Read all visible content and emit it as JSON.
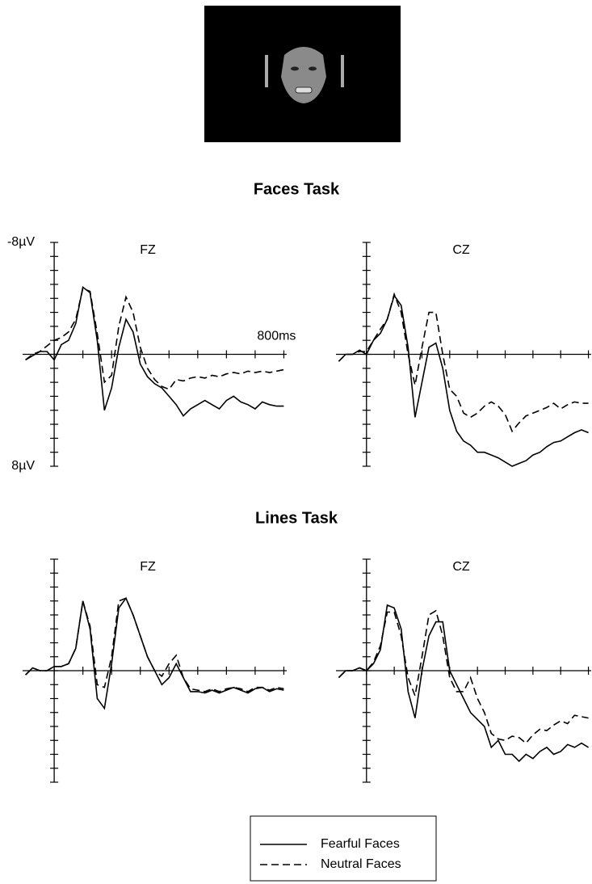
{
  "section_titles": [
    "Faces Task",
    "Lines Task"
  ],
  "chart_data": [
    {
      "type": "line",
      "title": "FZ",
      "x": [
        -100,
        -75,
        -50,
        -25,
        0,
        25,
        50,
        75,
        100,
        125,
        150,
        175,
        200,
        225,
        250,
        275,
        300,
        325,
        350,
        375,
        400,
        425,
        450,
        475,
        500,
        525,
        550,
        575,
        600,
        625,
        650,
        675,
        700,
        725,
        750,
        775,
        800
      ],
      "xlim": [
        -110,
        810
      ],
      "ylim": [
        8,
        -8
      ],
      "xticks": [
        {
          "value": 0,
          "label": null
        },
        {
          "value": 100,
          "label": null
        },
        {
          "value": 200,
          "label": null
        },
        {
          "value": 300,
          "label": null
        },
        {
          "value": 400,
          "label": null
        },
        {
          "value": 500,
          "label": null
        },
        {
          "value": 600,
          "label": null
        },
        {
          "value": 700,
          "label": null
        },
        {
          "value": 800,
          "label": "800ms"
        }
      ],
      "yticks": [
        {
          "value": -8,
          "label": "-8µV"
        },
        {
          "value": -7,
          "label": null
        },
        {
          "value": -6,
          "label": null
        },
        {
          "value": -5,
          "label": null
        },
        {
          "value": -4,
          "label": null
        },
        {
          "value": -3,
          "label": null
        },
        {
          "value": -2,
          "label": null
        },
        {
          "value": -1,
          "label": null
        },
        {
          "value": 0,
          "label": null
        },
        {
          "value": 1,
          "label": null
        },
        {
          "value": 2,
          "label": null
        },
        {
          "value": 3,
          "label": null
        },
        {
          "value": 4,
          "label": null
        },
        {
          "value": 5,
          "label": null
        },
        {
          "value": 6,
          "label": null
        },
        {
          "value": 7,
          "label": null
        },
        {
          "value": 8,
          "label": "8µV"
        }
      ],
      "series": [
        {
          "name": "Fearful Faces",
          "color": "#000000",
          "style": "solid",
          "values": [
            0.4,
            0.1,
            -0.2,
            -0.2,
            0.4,
            -0.7,
            -1,
            -2.2,
            -4.8,
            -4.4,
            -1,
            4,
            2.4,
            -0.5,
            -2.5,
            -1.6,
            0.7,
            1.6,
            2.1,
            2.4,
            3,
            3.6,
            4.4,
            3.9,
            3.6,
            3.3,
            3.6,
            3.9,
            3.3,
            3,
            3.4,
            3.6,
            3.9,
            3.4,
            3.6,
            3.7,
            3.7
          ]
        },
        {
          "name": "Neutral Faces",
          "color": "#000000",
          "style": "dashed",
          "values": [
            0.4,
            0,
            -0.2,
            -0.6,
            -1,
            -1.2,
            -1.6,
            -2.5,
            -4.7,
            -4.5,
            -1.5,
            2,
            1.5,
            -2,
            -4.1,
            -3,
            -0.5,
            1,
            1.8,
            2.3,
            2.5,
            1.8,
            1.9,
            1.7,
            1.6,
            1.7,
            1.5,
            1.6,
            1.4,
            1.3,
            1.4,
            1.2,
            1.3,
            1.2,
            1.3,
            1.2,
            1.1
          ]
        }
      ]
    },
    {
      "type": "line",
      "title": "CZ",
      "x": [
        -100,
        -75,
        -50,
        -25,
        0,
        25,
        50,
        75,
        100,
        125,
        150,
        175,
        200,
        225,
        250,
        275,
        300,
        325,
        350,
        375,
        400,
        425,
        450,
        475,
        500,
        525,
        550,
        575,
        600,
        625,
        650,
        675,
        700,
        725,
        750,
        775,
        800
      ],
      "xlim": [
        -110,
        810
      ],
      "ylim": [
        8,
        -8
      ],
      "xticks": [
        {
          "value": 0,
          "label": null
        },
        {
          "value": 100,
          "label": null
        },
        {
          "value": 200,
          "label": null
        },
        {
          "value": 300,
          "label": null
        },
        {
          "value": 400,
          "label": null
        },
        {
          "value": 500,
          "label": null
        },
        {
          "value": 600,
          "label": null
        },
        {
          "value": 700,
          "label": null
        },
        {
          "value": 800,
          "label": null
        }
      ],
      "yticks": [
        {
          "value": -8,
          "label": null
        },
        {
          "value": -7,
          "label": null
        },
        {
          "value": -6,
          "label": null
        },
        {
          "value": -5,
          "label": null
        },
        {
          "value": -4,
          "label": null
        },
        {
          "value": -3,
          "label": null
        },
        {
          "value": -2,
          "label": null
        },
        {
          "value": -1,
          "label": null
        },
        {
          "value": 0,
          "label": null
        },
        {
          "value": 1,
          "label": null
        },
        {
          "value": 2,
          "label": null
        },
        {
          "value": 3,
          "label": null
        },
        {
          "value": 4,
          "label": null
        },
        {
          "value": 5,
          "label": null
        },
        {
          "value": 6,
          "label": null
        },
        {
          "value": 7,
          "label": null
        },
        {
          "value": 8,
          "label": null
        }
      ],
      "series": [
        {
          "name": "Fearful Faces",
          "color": "#000000",
          "style": "solid",
          "values": [
            0.5,
            0,
            0,
            -0.3,
            0,
            -1,
            -1.5,
            -2.5,
            -4.2,
            -3.5,
            -0.5,
            4.5,
            2,
            -0.5,
            -0.8,
            1,
            4,
            5.5,
            6.2,
            6.5,
            7,
            7,
            7.2,
            7.4,
            7.7,
            8,
            7.8,
            7.6,
            7.2,
            7,
            6.6,
            6.3,
            6.2,
            5.9,
            5.6,
            5.4,
            5.6
          ]
        },
        {
          "name": "Neutral Faces",
          "color": "#000000",
          "style": "dashed",
          "values": [
            0.5,
            0,
            0,
            -0.2,
            -0.2,
            -1,
            -1.8,
            -2.5,
            -4.3,
            -3,
            0,
            2.2,
            -0.5,
            -3,
            -3,
            0,
            2.5,
            3,
            4.2,
            4.5,
            4.2,
            3.7,
            3.4,
            3.7,
            4.3,
            5.5,
            4.9,
            4.4,
            4.2,
            4,
            3.8,
            3.5,
            3.9,
            3.6,
            3.4,
            3.5,
            3.5
          ]
        }
      ]
    },
    {
      "type": "line",
      "title": "FZ",
      "x": [
        -100,
        -75,
        -50,
        -25,
        0,
        25,
        50,
        75,
        100,
        125,
        150,
        175,
        200,
        225,
        250,
        275,
        300,
        325,
        350,
        375,
        400,
        425,
        450,
        475,
        500,
        525,
        550,
        575,
        600,
        625,
        650,
        675,
        700,
        725,
        750,
        775,
        800
      ],
      "xlim": [
        -110,
        810
      ],
      "ylim": [
        8,
        -8
      ],
      "xticks": [
        {
          "value": 0,
          "label": null
        },
        {
          "value": 100,
          "label": null
        },
        {
          "value": 200,
          "label": null
        },
        {
          "value": 300,
          "label": null
        },
        {
          "value": 400,
          "label": null
        },
        {
          "value": 500,
          "label": null
        },
        {
          "value": 600,
          "label": null
        },
        {
          "value": 700,
          "label": null
        },
        {
          "value": 800,
          "label": null
        }
      ],
      "yticks": [
        {
          "value": -8,
          "label": null
        },
        {
          "value": -7,
          "label": null
        },
        {
          "value": -6,
          "label": null
        },
        {
          "value": -5,
          "label": null
        },
        {
          "value": -4,
          "label": null
        },
        {
          "value": -3,
          "label": null
        },
        {
          "value": -2,
          "label": null
        },
        {
          "value": -1,
          "label": null
        },
        {
          "value": 0,
          "label": null
        },
        {
          "value": 1,
          "label": null
        },
        {
          "value": 2,
          "label": null
        },
        {
          "value": 3,
          "label": null
        },
        {
          "value": 4,
          "label": null
        },
        {
          "value": 5,
          "label": null
        },
        {
          "value": 6,
          "label": null
        },
        {
          "value": 7,
          "label": null
        },
        {
          "value": 8,
          "label": null
        }
      ],
      "series": [
        {
          "name": "Fearful Faces",
          "color": "#000000",
          "style": "solid",
          "values": [
            0.3,
            -0.2,
            0,
            0,
            -0.3,
            -0.3,
            -0.5,
            -1.6,
            -5,
            -3,
            2,
            2.7,
            -0.5,
            -4.5,
            -5.2,
            -4,
            -2.5,
            -1,
            0,
            1,
            0.5,
            -0.5,
            0.5,
            1.5,
            1.5,
            1.6,
            1.4,
            1.6,
            1.4,
            1.2,
            1.4,
            1.6,
            1.3,
            1.2,
            1.5,
            1.3,
            1.4
          ]
        },
        {
          "name": "Neutral Faces",
          "color": "#000000",
          "style": "dashed",
          "values": [
            0.3,
            -0.2,
            0,
            0,
            -0.3,
            -0.3,
            -0.5,
            -1.6,
            -5,
            -3.2,
            1,
            1.2,
            -1,
            -5,
            -5.2,
            -4,
            -2.5,
            -1,
            0,
            0.4,
            -0.5,
            -1.1,
            0.5,
            1.3,
            1.4,
            1.5,
            1.3,
            1.5,
            1.3,
            1.2,
            1.3,
            1.5,
            1.2,
            1.2,
            1.4,
            1.2,
            1.3
          ]
        }
      ]
    },
    {
      "type": "line",
      "title": "CZ",
      "x": [
        -100,
        -75,
        -50,
        -25,
        0,
        25,
        50,
        75,
        100,
        125,
        150,
        175,
        200,
        225,
        250,
        275,
        300,
        325,
        350,
        375,
        400,
        425,
        450,
        475,
        500,
        525,
        550,
        575,
        600,
        625,
        650,
        675,
        700,
        725,
        750,
        775,
        800
      ],
      "xlim": [
        -110,
        810
      ],
      "ylim": [
        8,
        -8
      ],
      "xticks": [
        {
          "value": 0,
          "label": null
        },
        {
          "value": 100,
          "label": null
        },
        {
          "value": 200,
          "label": null
        },
        {
          "value": 300,
          "label": null
        },
        {
          "value": 400,
          "label": null
        },
        {
          "value": 500,
          "label": null
        },
        {
          "value": 600,
          "label": null
        },
        {
          "value": 700,
          "label": null
        },
        {
          "value": 800,
          "label": null
        }
      ],
      "yticks": [
        {
          "value": -8,
          "label": null
        },
        {
          "value": -7,
          "label": null
        },
        {
          "value": -6,
          "label": null
        },
        {
          "value": -5,
          "label": null
        },
        {
          "value": -4,
          "label": null
        },
        {
          "value": -3,
          "label": null
        },
        {
          "value": -2,
          "label": null
        },
        {
          "value": -1,
          "label": null
        },
        {
          "value": 0,
          "label": null
        },
        {
          "value": 1,
          "label": null
        },
        {
          "value": 2,
          "label": null
        },
        {
          "value": 3,
          "label": null
        },
        {
          "value": 4,
          "label": null
        },
        {
          "value": 5,
          "label": null
        },
        {
          "value": 6,
          "label": null
        },
        {
          "value": 7,
          "label": null
        },
        {
          "value": 8,
          "label": null
        }
      ],
      "series": [
        {
          "name": "Fearful Faces",
          "color": "#000000",
          "style": "solid",
          "values": [
            0.5,
            0,
            0,
            -0.2,
            0,
            -0.5,
            -1.5,
            -4.7,
            -4.5,
            -3,
            1.5,
            3.4,
            0,
            -2.5,
            -3.5,
            -3.5,
            0,
            1,
            2,
            3,
            3.5,
            4,
            5.5,
            5,
            6,
            6,
            6.5,
            6,
            6.3,
            5.8,
            5.5,
            6,
            5.8,
            5.3,
            5.5,
            5.2,
            5.5
          ]
        },
        {
          "name": "Neutral Faces",
          "color": "#000000",
          "style": "dashed",
          "values": [
            0.5,
            0,
            0,
            -0.2,
            0,
            -0.6,
            -1.8,
            -4.2,
            -4.2,
            -2.5,
            0.5,
            1.8,
            -1,
            -4,
            -4.3,
            -2.5,
            0.5,
            1.5,
            1.5,
            0.5,
            2,
            3,
            4.5,
            4.9,
            5,
            4.7,
            4.8,
            5.2,
            4.6,
            4.2,
            4.3,
            3.9,
            3.6,
            3.8,
            3.2,
            3.3,
            3.4
          ]
        }
      ]
    }
  ]
}
